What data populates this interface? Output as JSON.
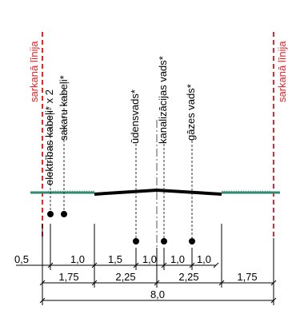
{
  "red_lines": {
    "label_left": "sarkanā līnija",
    "label_right": "sarkanā līnija",
    "color": "#e8262a"
  },
  "utilities": [
    {
      "label": "elektrības kabeļi* x 2"
    },
    {
      "label": "sakaru kabeļi*"
    },
    {
      "label": "ūdensvads*"
    },
    {
      "label": "kanalizācijas vads*"
    },
    {
      "label": "gāzes vads*"
    }
  ],
  "dimensions": {
    "row1": [
      "0,5",
      "1,0",
      "1,5",
      "1,0",
      "1,0",
      "1,0"
    ],
    "row2": [
      "1,75",
      "2,25",
      "2,25",
      "1,75"
    ],
    "total": "8,0"
  },
  "colors": {
    "ground": "#2e8b6f",
    "road": "#000000",
    "axis": "#555555"
  }
}
